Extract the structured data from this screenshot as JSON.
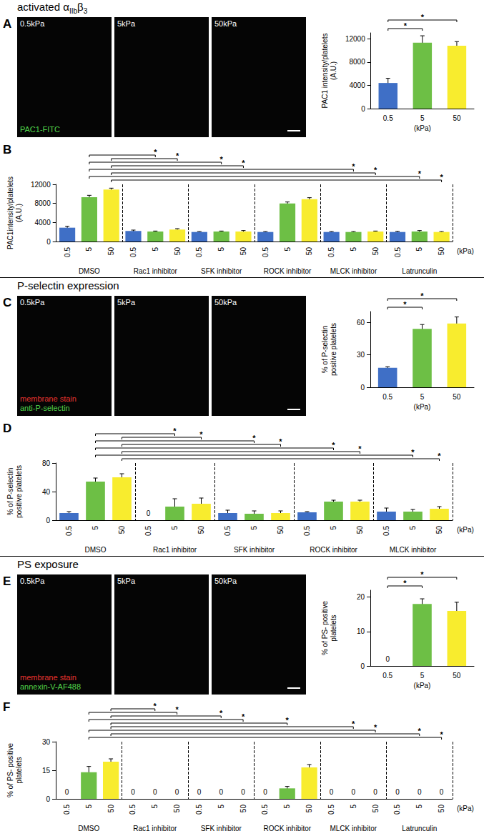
{
  "sections": [
    {
      "heading": [
        {
          "text": "activated α"
        },
        {
          "text": "IIb",
          "sub": true
        },
        {
          "text": "β"
        },
        {
          "text": "3",
          "sub": true
        }
      ],
      "images": {
        "labels": [
          "0.5kPa",
          "5kPa",
          "50kPa"
        ],
        "stains": [
          {
            "text": "PAC1-FITC",
            "color": "#52d64a"
          }
        ]
      }
    },
    {
      "heading": [
        {
          "text": "P-selectin  expression"
        }
      ],
      "images": {
        "labels": [
          "0.5kPa",
          "5kPa",
          "50kPa"
        ],
        "stains": [
          {
            "text": "membrane stain",
            "color": "#e8332f"
          },
          {
            "text": "anti-P-selectin",
            "color": "#52d64a"
          }
        ]
      }
    },
    {
      "heading": [
        {
          "text": "PS exposure"
        }
      ],
      "images": {
        "labels": [
          "0.5kPa",
          "5kPa",
          "50kPa"
        ],
        "stains": [
          {
            "text": "membrane stain",
            "color": "#e8332f"
          },
          {
            "text": "annexin-V-AF488",
            "color": "#52d64a"
          }
        ]
      }
    }
  ],
  "chart_data": [
    {
      "type": "bar",
      "panel_label": "A",
      "categories": [
        "0.5",
        "5",
        "50"
      ],
      "values": [
        4400,
        11300,
        10800
      ],
      "errors": [
        800,
        1200,
        700
      ],
      "colors": [
        "#3f6fc6",
        "#6dbf45",
        "#f8ec2e"
      ],
      "ylim": [
        0,
        13000
      ],
      "yticks": [
        0,
        4000,
        8000,
        12000
      ],
      "y_label": "PAC1 intensity/platelets\n(A.U.)",
      "x_label": "(kPa)",
      "comparisons": [
        {
          "from": 0,
          "to": 1,
          "label": "*"
        },
        {
          "from": 0,
          "to": 2,
          "label": "*"
        }
      ]
    },
    {
      "type": "bar",
      "panel_label": "B",
      "categories": [
        "0.5",
        "5",
        "50",
        "0.5",
        "5",
        "50",
        "0.5",
        "5",
        "50",
        "0.5",
        "5",
        "50",
        "0.5",
        "5",
        "50",
        "0.5",
        "5",
        "50"
      ],
      "groups": [
        "DMSO",
        "Rac1 inhibitor",
        "SFK inhibitor",
        "ROCK inhibitor",
        "MLCK inhibitor",
        "Latrunculin"
      ],
      "values": [
        2900,
        9300,
        10900,
        2200,
        2100,
        2500,
        2000,
        2100,
        2100,
        2000,
        8000,
        8900,
        2000,
        2000,
        2100,
        2000,
        2100,
        2000
      ],
      "errors": [
        300,
        400,
        300,
        200,
        100,
        200,
        100,
        100,
        200,
        100,
        300,
        300,
        100,
        100,
        100,
        150,
        200,
        100
      ],
      "colors": [
        "#3f6fc6",
        "#6dbf45",
        "#f8ec2e",
        "#3f6fc6",
        "#6dbf45",
        "#f8ec2e",
        "#3f6fc6",
        "#6dbf45",
        "#f8ec2e",
        "#3f6fc6",
        "#6dbf45",
        "#f8ec2e",
        "#3f6fc6",
        "#6dbf45",
        "#f8ec2e",
        "#3f6fc6",
        "#6dbf45",
        "#f8ec2e"
      ],
      "ylim": [
        0,
        12000
      ],
      "yticks": [
        0,
        4000,
        8000,
        12000
      ],
      "y_label": "PAC1intensity/platelets\n(A.U.)",
      "x_label": "(kPa)",
      "comparisons": [
        {
          "from": 2,
          "to": 5,
          "label": "*"
        },
        {
          "from": 1,
          "to": 4,
          "label": "*"
        },
        {
          "from": 2,
          "to": 8,
          "label": "*"
        },
        {
          "from": 1,
          "to": 7,
          "label": "*"
        },
        {
          "from": 2,
          "to": 14,
          "label": "*"
        },
        {
          "from": 1,
          "to": 13,
          "label": "*"
        },
        {
          "from": 2,
          "to": 17,
          "label": "*"
        },
        {
          "from": 1,
          "to": 16,
          "label": "*"
        }
      ]
    },
    {
      "type": "bar",
      "panel_label": "C",
      "categories": [
        "0.5",
        "5",
        "50"
      ],
      "values": [
        18,
        54,
        59
      ],
      "errors": [
        1,
        4,
        6
      ],
      "colors": [
        "#3f6fc6",
        "#6dbf45",
        "#f8ec2e"
      ],
      "ylim": [
        0,
        70
      ],
      "yticks": [
        0,
        30,
        60
      ],
      "y_label": "% of P-selectin\npositive platelets",
      "x_label": "(kPa)",
      "comparisons": [
        {
          "from": 0,
          "to": 1,
          "label": "*"
        },
        {
          "from": 0,
          "to": 2,
          "label": "*"
        }
      ]
    },
    {
      "type": "bar",
      "panel_label": "D",
      "categories": [
        "0.5",
        "5",
        "50",
        "0.5",
        "5",
        "50",
        "0.5",
        "5",
        "50",
        "0.5",
        "5",
        "50",
        "0.5",
        "5",
        "50"
      ],
      "groups": [
        "DMSO",
        "Rac1 inhibitor",
        "SFK inhibitor",
        "ROCK inhibitor",
        "MLCK inhibitor"
      ],
      "values": [
        10,
        54,
        60,
        0,
        19,
        23,
        10,
        9,
        10,
        11,
        26,
        26,
        12,
        12,
        16
      ],
      "errors": [
        2,
        5,
        5,
        0,
        11,
        8,
        4,
        4,
        3,
        1,
        2,
        2,
        5,
        3,
        3
      ],
      "value_labels": [
        null,
        null,
        null,
        "0",
        null,
        null,
        null,
        null,
        null,
        null,
        null,
        null,
        null,
        null,
        null
      ],
      "colors": [
        "#3f6fc6",
        "#6dbf45",
        "#f8ec2e",
        "#3f6fc6",
        "#6dbf45",
        "#f8ec2e",
        "#3f6fc6",
        "#6dbf45",
        "#f8ec2e",
        "#3f6fc6",
        "#6dbf45",
        "#f8ec2e",
        "#3f6fc6",
        "#6dbf45",
        "#f8ec2e"
      ],
      "ylim": [
        0,
        80
      ],
      "yticks": [
        0,
        40,
        80
      ],
      "y_label": "% of P-selectin\npositive platelets",
      "x_label": "(kPa)",
      "comparisons": [
        {
          "from": 2,
          "to": 5,
          "label": "*"
        },
        {
          "from": 1,
          "to": 4,
          "label": "*"
        },
        {
          "from": 2,
          "to": 8,
          "label": "*"
        },
        {
          "from": 1,
          "to": 7,
          "label": "*"
        },
        {
          "from": 2,
          "to": 11,
          "label": "*"
        },
        {
          "from": 1,
          "to": 10,
          "label": "*"
        },
        {
          "from": 2,
          "to": 14,
          "label": "*"
        },
        {
          "from": 1,
          "to": 13,
          "label": "*"
        }
      ]
    },
    {
      "type": "bar",
      "panel_label": "E",
      "categories": [
        "0.5",
        "5",
        "50"
      ],
      "values": [
        0,
        18,
        16
      ],
      "errors": [
        0,
        1.5,
        2.5
      ],
      "value_labels": [
        "0",
        null,
        null
      ],
      "colors": [
        "#3f6fc6",
        "#6dbf45",
        "#f8ec2e"
      ],
      "ylim": [
        0,
        22
      ],
      "yticks": [
        0,
        10,
        20
      ],
      "y_label": "% of PS- positive\nplatelets",
      "x_label": "(kPa)",
      "comparisons": [
        {
          "from": 0,
          "to": 1,
          "label": "*"
        },
        {
          "from": 0,
          "to": 2,
          "label": "*"
        }
      ]
    },
    {
      "type": "bar",
      "panel_label": "F",
      "categories": [
        "0.5",
        "5",
        "50",
        "0.5",
        "5",
        "50",
        "0.5",
        "5",
        "50",
        "0.5",
        "5",
        "50",
        "0.5",
        "5",
        "50",
        "0.5",
        "5",
        "50"
      ],
      "groups": [
        "DMSO",
        "Rac1 inhibitor",
        "SFK inhibitor",
        "ROCK inhibitor",
        "MLCK inhibitor",
        "Latrunculin"
      ],
      "values": [
        0,
        14,
        19.5,
        0,
        0,
        0,
        0,
        0,
        0,
        0,
        5.5,
        16.5,
        0,
        0,
        0,
        0,
        0,
        0
      ],
      "errors": [
        0,
        3,
        1.5,
        0,
        0,
        0,
        0,
        0,
        0,
        0,
        1,
        1.5,
        0,
        0,
        0,
        0,
        0,
        0
      ],
      "value_labels": [
        "0",
        null,
        null,
        "0",
        "0",
        "0",
        "0",
        "0",
        "0",
        "0",
        null,
        null,
        "0",
        "0",
        "0",
        "0",
        "0",
        "0"
      ],
      "colors": [
        "#3f6fc6",
        "#6dbf45",
        "#f8ec2e",
        "#3f6fc6",
        "#6dbf45",
        "#f8ec2e",
        "#3f6fc6",
        "#6dbf45",
        "#f8ec2e",
        "#3f6fc6",
        "#6dbf45",
        "#f8ec2e",
        "#3f6fc6",
        "#6dbf45",
        "#f8ec2e",
        "#3f6fc6",
        "#6dbf45",
        "#f8ec2e"
      ],
      "ylim": [
        0,
        30
      ],
      "yticks": [
        0,
        15,
        30
      ],
      "y_label": "% of PS- positive\nplatelets",
      "x_label": "(kPa)",
      "comparisons": [
        {
          "from": 2,
          "to": 4,
          "label": "*"
        },
        {
          "from": 1,
          "to": 5,
          "label": "*"
        },
        {
          "from": 2,
          "to": 7,
          "label": "*"
        },
        {
          "from": 1,
          "to": 8,
          "label": "*"
        },
        {
          "from": 2,
          "to": 10,
          "label": "*"
        },
        {
          "from": 2,
          "to": 13,
          "label": "*"
        },
        {
          "from": 1,
          "to": 14,
          "label": "*"
        },
        {
          "from": 2,
          "to": 16,
          "label": "*"
        },
        {
          "from": 1,
          "to": 17,
          "label": "*"
        }
      ]
    }
  ]
}
